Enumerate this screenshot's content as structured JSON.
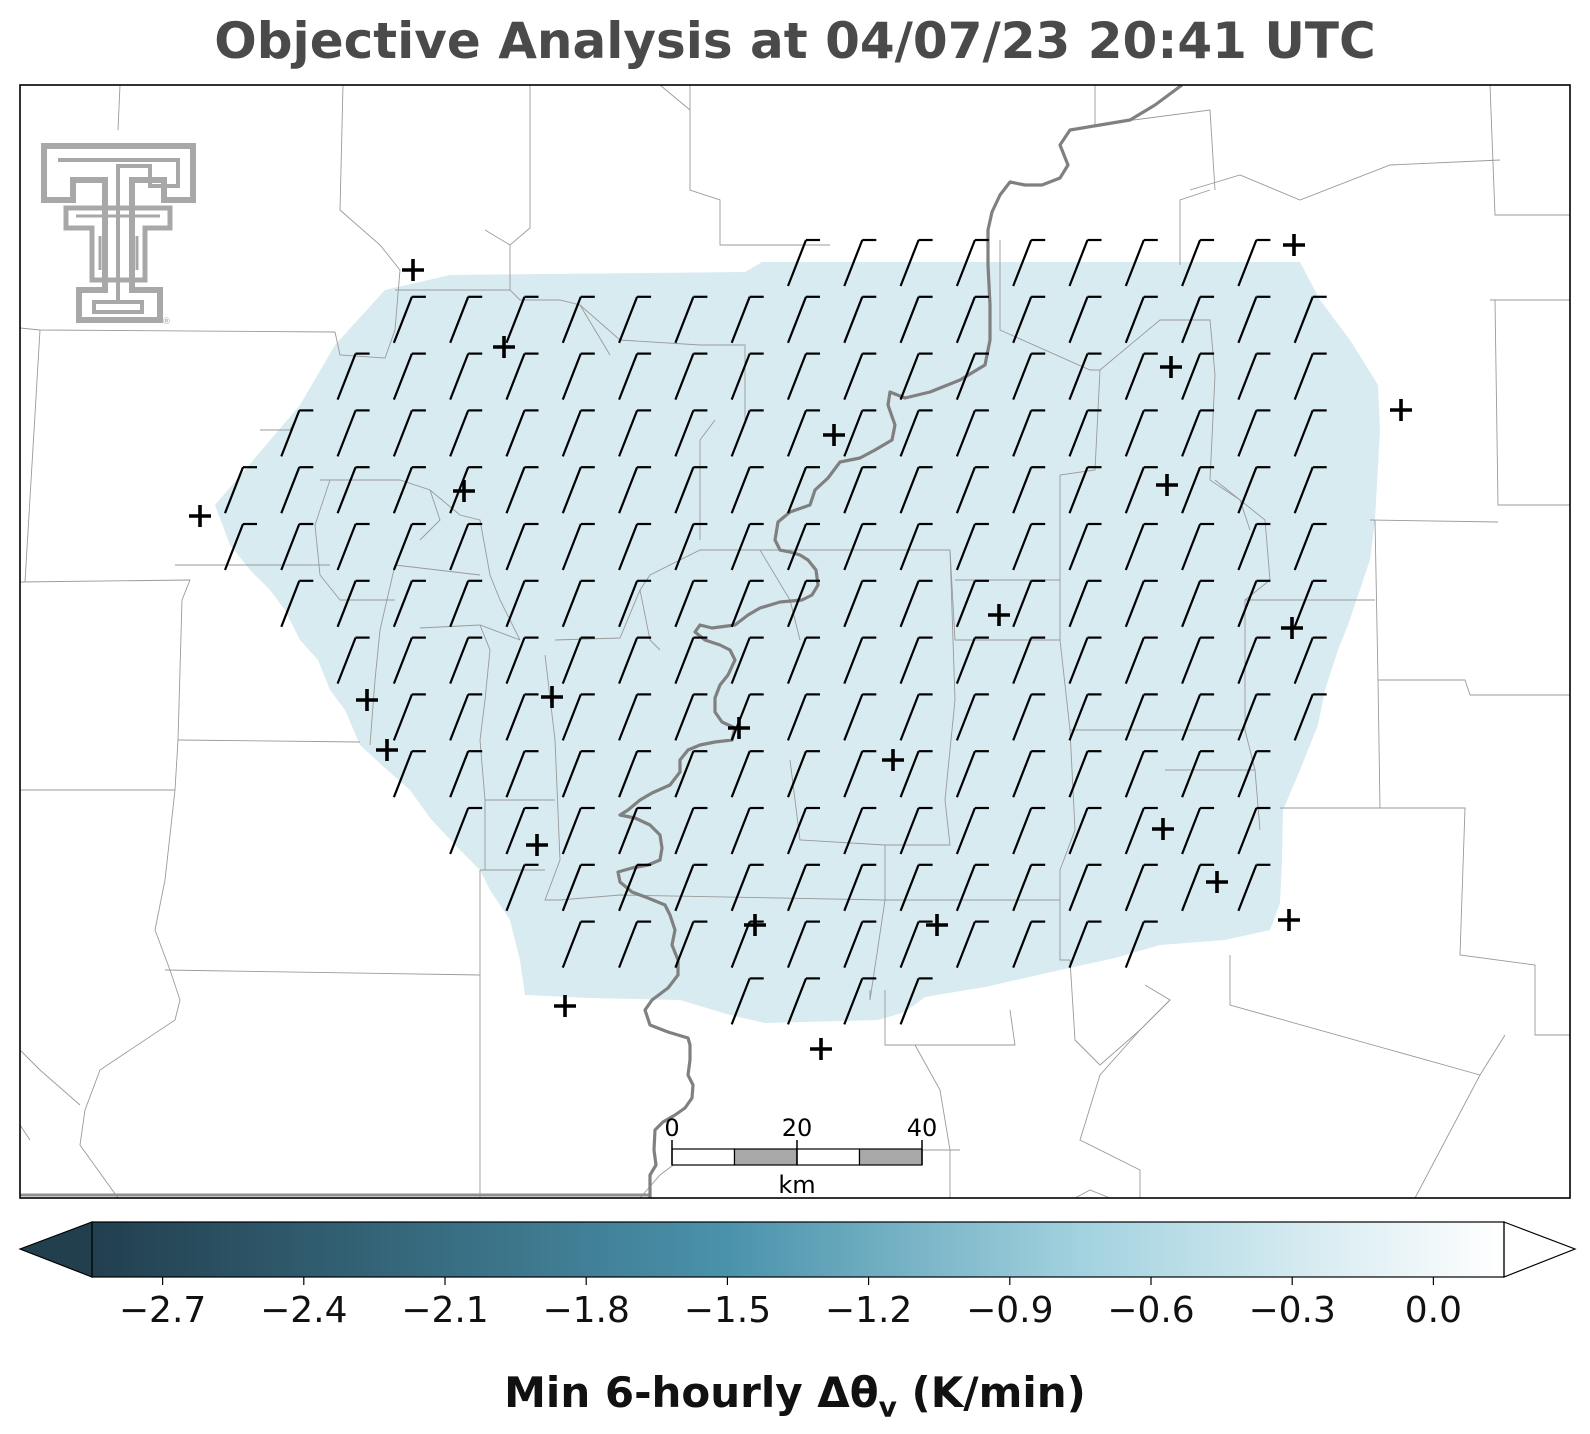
{
  "title": "Objective Analysis at 04/07/23 20:41 UTC",
  "colorbar": {
    "ticks": [
      "−2.7",
      "−2.4",
      "−2.1",
      "−1.8",
      "−1.5",
      "−1.2",
      "−0.9",
      "−0.6",
      "−0.3",
      "0.0"
    ],
    "tick_values": [
      -2.7,
      -2.4,
      -2.1,
      -1.8,
      -1.5,
      -1.2,
      -0.9,
      -0.6,
      -0.3,
      0.0
    ],
    "range": [
      -2.85,
      0.15
    ],
    "extend": "both",
    "colors": [
      "#213f4e",
      "#4a92ab",
      "#a5d4e1",
      "#ffffff"
    ],
    "label_main": "Min 6-hourly Δθ",
    "label_sub": "v",
    "label_units": " (K/min)"
  },
  "analysis": {
    "field_value": -0.75,
    "field_color": "#d8ebf1"
  },
  "scale_bar": {
    "labels": [
      "0",
      "20",
      "40"
    ],
    "unit": "km"
  },
  "logo": {
    "name": "texas-tech-double-t-logo",
    "registered_mark": "®"
  },
  "colors": {
    "border": "#000000",
    "county_lines": "#9a9a9a",
    "river": "#808080",
    "barbs": "#000000",
    "stations": "#000000",
    "logo": "#a8a8a8"
  }
}
